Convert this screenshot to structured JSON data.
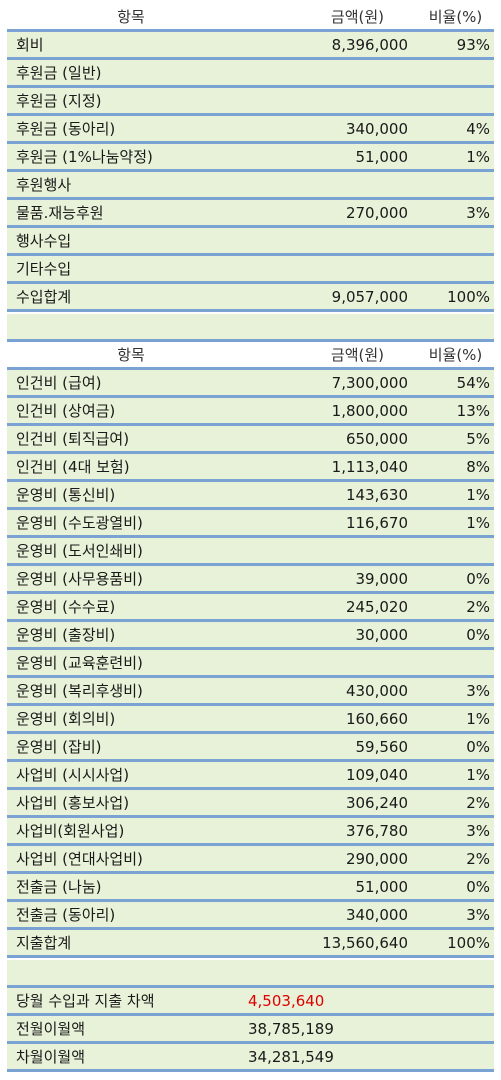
{
  "header": {
    "item": "항목",
    "amount": "금액(원)",
    "ratio": "비율(%)"
  },
  "income": [
    {
      "name": "회비",
      "amount": "8,396,000",
      "ratio": "93%"
    },
    {
      "name": "후원금 (일반)",
      "amount": "",
      "ratio": ""
    },
    {
      "name": "후원금 (지정)",
      "amount": "",
      "ratio": ""
    },
    {
      "name": "후원금 (동아리)",
      "amount": "340,000",
      "ratio": "4%"
    },
    {
      "name": "후원금 (1%나눔약정)",
      "amount": "51,000",
      "ratio": "1%"
    },
    {
      "name": "후원행사",
      "amount": "",
      "ratio": ""
    },
    {
      "name": "물품.재능후원",
      "amount": "270,000",
      "ratio": "3%"
    },
    {
      "name": "행사수입",
      "amount": "",
      "ratio": ""
    },
    {
      "name": "기타수입",
      "amount": "",
      "ratio": ""
    },
    {
      "name": "수입합계",
      "amount": "9,057,000",
      "ratio": "100%"
    }
  ],
  "expense": [
    {
      "name": "인건비 (급여)",
      "amount": "7,300,000",
      "ratio": "54%"
    },
    {
      "name": "인건비 (상여금)",
      "amount": "1,800,000",
      "ratio": "13%"
    },
    {
      "name": "인건비 (퇴직급여)",
      "amount": "650,000",
      "ratio": "5%"
    },
    {
      "name": "인건비 (4대 보험)",
      "amount": "1,113,040",
      "ratio": "8%"
    },
    {
      "name": "운영비 (통신비)",
      "amount": "143,630",
      "ratio": "1%"
    },
    {
      "name": "운영비 (수도광열비)",
      "amount": "116,670",
      "ratio": "1%"
    },
    {
      "name": "운영비 (도서인쇄비)",
      "amount": "",
      "ratio": ""
    },
    {
      "name": "운영비 (사무용품비)",
      "amount": "39,000",
      "ratio": "0%"
    },
    {
      "name": "운영비 (수수료)",
      "amount": "245,020",
      "ratio": "2%"
    },
    {
      "name": "운영비 (출장비)",
      "amount": "30,000",
      "ratio": "0%"
    },
    {
      "name": "운영비 (교육훈련비)",
      "amount": "",
      "ratio": ""
    },
    {
      "name": "운영비 (복리후생비)",
      "amount": "430,000",
      "ratio": "3%"
    },
    {
      "name": "운영비 (회의비)",
      "amount": "160,660",
      "ratio": "1%"
    },
    {
      "name": "운영비 (잡비)",
      "amount": "59,560",
      "ratio": "0%"
    },
    {
      "name": "사업비 (시시사업)",
      "amount": "109,040",
      "ratio": "1%"
    },
    {
      "name": "사업비 (홍보사업)",
      "amount": "306,240",
      "ratio": "2%"
    },
    {
      "name": "사업비(회원사업)",
      "amount": "376,780",
      "ratio": "3%"
    },
    {
      "name": "사업비 (연대사업비)",
      "amount": "290,000",
      "ratio": "2%"
    },
    {
      "name": "전출금 (나눔)",
      "amount": "51,000",
      "ratio": "0%"
    },
    {
      "name": "전출금 (동아리)",
      "amount": "340,000",
      "ratio": "3%"
    },
    {
      "name": "지출합계",
      "amount": "13,560,640",
      "ratio": "100%"
    }
  ],
  "summary": [
    {
      "name": "당월 수입과 지출 차액",
      "amount": "4,503,640",
      "highlight": true
    },
    {
      "name": "전월이월액",
      "amount": "38,785,189",
      "highlight": false
    },
    {
      "name": "차월이월액",
      "amount": "34,281,549",
      "highlight": false
    }
  ],
  "colors": {
    "row_bg": "#e8f2d8",
    "divider": "#7aa3d3",
    "negative": "#e00000"
  }
}
